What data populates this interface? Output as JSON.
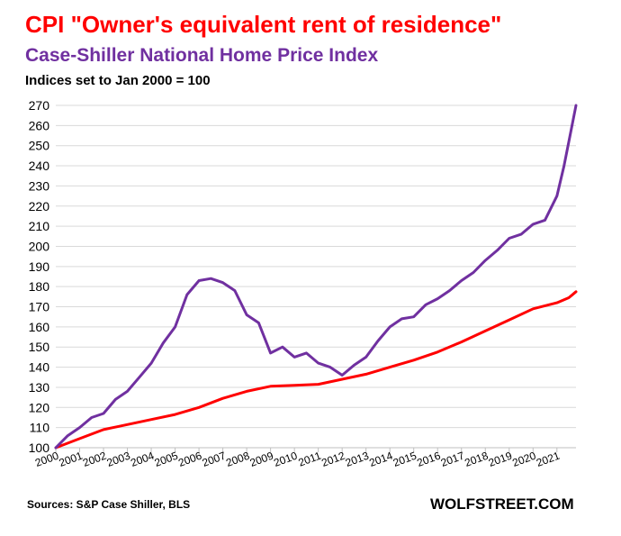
{
  "title": "CPI \"Owner's equivalent rent of residence\"",
  "subtitle": "Case-Shiller  National  Home Price  Index",
  "note": "Indices set to Jan 2000 = 100",
  "source": "Sources: S&P Case Shiller, BLS",
  "brand": "WOLFSTREET.COM",
  "colors": {
    "cpi": "#ff0000",
    "case_shiller": "#7030a0",
    "grid": "#d9d9d9",
    "axis": "#bfbfbf"
  },
  "chart_data": {
    "type": "line",
    "xlim": [
      2000,
      2021.8
    ],
    "ylim": [
      100,
      270
    ],
    "yticks": [
      100,
      110,
      120,
      130,
      140,
      150,
      160,
      170,
      180,
      190,
      200,
      210,
      220,
      230,
      240,
      250,
      260,
      270
    ],
    "xtick_labels": [
      "2000",
      "2001",
      "2002",
      "2003",
      "2004",
      "2005",
      "2006",
      "2007",
      "2008",
      "2009",
      "2010",
      "2011",
      "2012",
      "2013",
      "2014",
      "2015",
      "2016",
      "2017",
      "2018",
      "2019",
      "2020",
      "2021"
    ],
    "grid": "horizontal",
    "legend": "none",
    "series": [
      {
        "name": "CPI \"Owner's equivalent rent of residence\"",
        "color": "#ff0000",
        "x": [
          2000,
          2001,
          2002,
          2003,
          2004,
          2005,
          2006,
          2007,
          2008,
          2009,
          2010,
          2011,
          2012,
          2013,
          2014,
          2015,
          2016,
          2017,
          2018,
          2019,
          2020,
          2021,
          2021.5,
          2021.8
        ],
        "y": [
          100,
          104.5,
          109,
          111.5,
          114,
          116.5,
          120,
          124.5,
          128,
          130.5,
          131,
          131.5,
          134,
          136.5,
          140,
          143.5,
          147.5,
          152.5,
          158,
          163.5,
          169,
          172,
          174.5,
          177.5
        ]
      },
      {
        "name": "Case-Shiller  National  Home Price  Index",
        "color": "#7030a0",
        "x": [
          2000,
          2000.5,
          2001,
          2001.5,
          2002,
          2002.5,
          2003,
          2003.5,
          2004,
          2004.5,
          2005,
          2005.5,
          2006,
          2006.5,
          2007,
          2007.5,
          2008,
          2008.5,
          2009,
          2009.5,
          2010,
          2010.5,
          2011,
          2011.5,
          2012,
          2012.5,
          2013,
          2013.5,
          2014,
          2014.5,
          2015,
          2015.5,
          2016,
          2016.5,
          2017,
          2017.5,
          2018,
          2018.5,
          2019,
          2019.5,
          2020,
          2020.5,
          2021,
          2021.3,
          2021.6,
          2021.8
        ],
        "y": [
          100,
          106,
          110,
          115,
          117,
          124,
          128,
          135,
          142,
          152,
          160,
          176,
          183,
          184,
          182,
          178,
          166,
          162,
          147,
          150,
          145,
          147,
          142,
          140,
          136,
          141,
          145,
          153,
          160,
          164,
          165,
          171,
          174,
          178,
          183,
          187,
          193,
          198,
          204,
          206,
          211,
          213,
          225,
          240,
          258,
          270
        ]
      }
    ]
  }
}
